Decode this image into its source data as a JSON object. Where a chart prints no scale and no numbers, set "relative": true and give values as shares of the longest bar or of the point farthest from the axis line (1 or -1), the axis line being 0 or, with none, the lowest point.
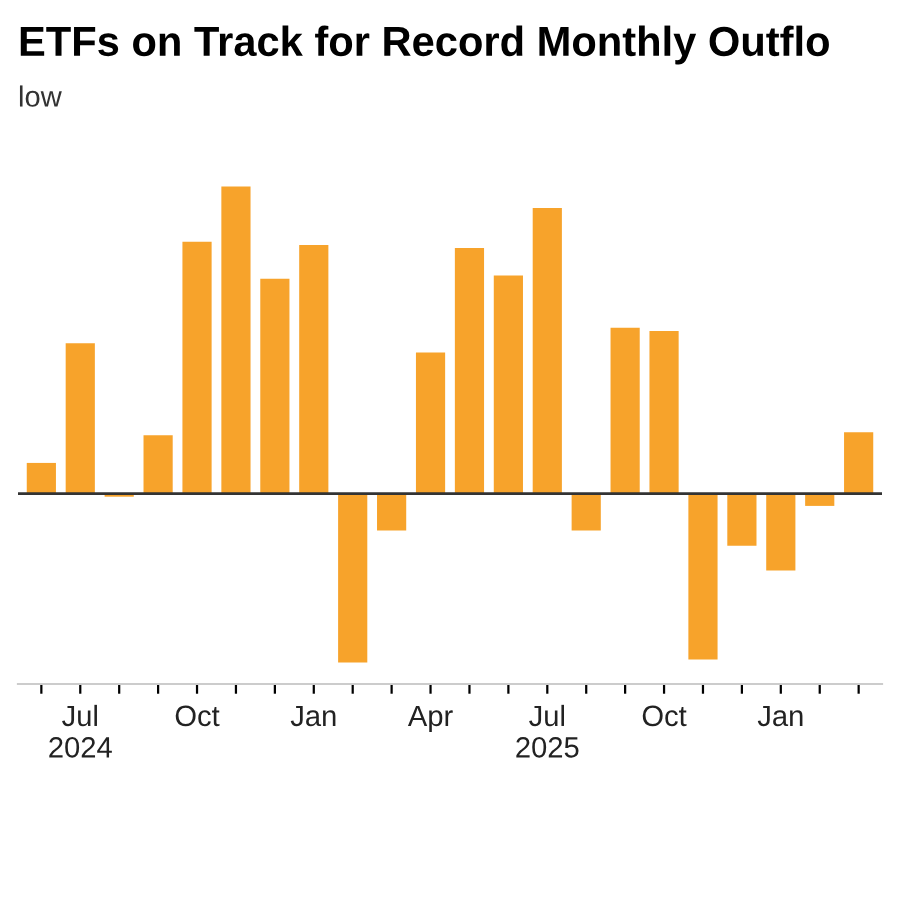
{
  "chart_data": {
    "type": "bar",
    "title": "ETFs on Track for Record Monthly Outflo",
    "subtitle": "low",
    "categories": [
      null,
      "Jul\n2024",
      null,
      null,
      "Oct",
      null,
      null,
      "Jan",
      null,
      null,
      "Apr",
      null,
      null,
      "Jul\n2025",
      null,
      null,
      "Oct",
      null,
      null,
      "Jan",
      null,
      null
    ],
    "values": [
      0.1,
      0.49,
      -0.01,
      0.19,
      0.82,
      1.0,
      0.7,
      0.81,
      -0.55,
      -0.12,
      0.46,
      0.8,
      0.71,
      0.93,
      -0.12,
      0.54,
      0.53,
      -0.54,
      -0.17,
      -0.25,
      -0.04,
      0.2
    ],
    "color": "#f7a32b",
    "relative": true,
    "legend": false
  }
}
